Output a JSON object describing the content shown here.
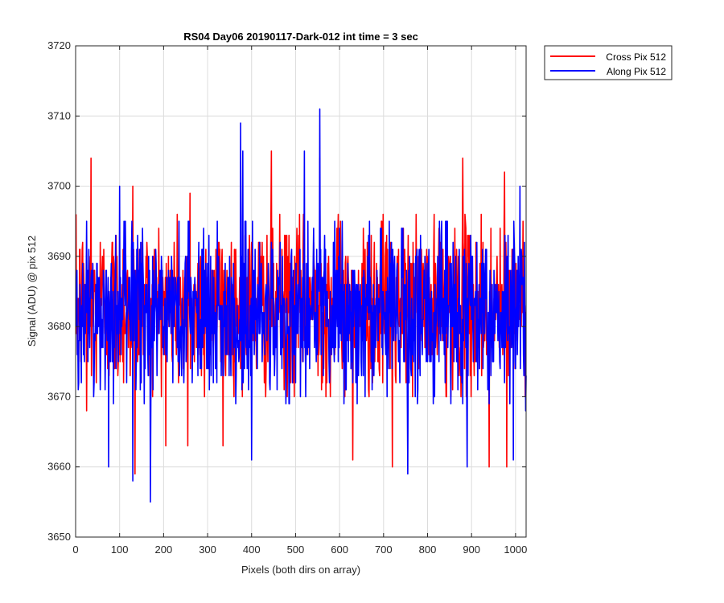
{
  "chart_data": {
    "type": "line",
    "title": "RS04 Day06 20190117-Dark-012 int time = 3 sec",
    "xlabel": "Pixels (both dirs on array)",
    "ylabel": "Signal (ADU) @ pix 512",
    "xlim": [
      0,
      1024
    ],
    "ylim": [
      3650,
      3720
    ],
    "xticks": [
      0,
      100,
      200,
      300,
      400,
      500,
      600,
      700,
      800,
      900,
      1000
    ],
    "yticks": [
      3650,
      3660,
      3670,
      3680,
      3690,
      3700,
      3710,
      3720
    ],
    "grid": true,
    "legend_position": "outside top-right",
    "series": [
      {
        "name": "Cross Pix 512",
        "color": "#ff0000",
        "x_start": 1,
        "x_step": 1,
        "mean": 3683,
        "noise_std": 6,
        "count": 1024,
        "notable_points": [
          {
            "x": 35,
            "y": 3704
          },
          {
            "x": 25,
            "y": 3699
          },
          {
            "x": 130,
            "y": 3700
          },
          {
            "x": 260,
            "y": 3699
          },
          {
            "x": 445,
            "y": 3705
          },
          {
            "x": 555,
            "y": 3704
          },
          {
            "x": 880,
            "y": 3704
          },
          {
            "x": 975,
            "y": 3702
          },
          {
            "x": 135,
            "y": 3659
          },
          {
            "x": 720,
            "y": 3660
          },
          {
            "x": 940,
            "y": 3660
          },
          {
            "x": 980,
            "y": 3660
          },
          {
            "x": 630,
            "y": 3661
          },
          {
            "x": 205,
            "y": 3663
          },
          {
            "x": 335,
            "y": 3663
          },
          {
            "x": 255,
            "y": 3663
          },
          {
            "x": 25,
            "y": 3668
          }
        ]
      },
      {
        "name": "Along Pix 512",
        "color": "#0000ff",
        "x_start": 1,
        "x_step": 1,
        "mean": 3682,
        "noise_std": 6,
        "count": 1024,
        "notable_points": [
          {
            "x": 555,
            "y": 3711
          },
          {
            "x": 375,
            "y": 3709
          },
          {
            "x": 380,
            "y": 3705
          },
          {
            "x": 520,
            "y": 3705
          },
          {
            "x": 1010,
            "y": 3700
          },
          {
            "x": 100,
            "y": 3700
          },
          {
            "x": 170,
            "y": 3655
          },
          {
            "x": 130,
            "y": 3658
          },
          {
            "x": 75,
            "y": 3660
          },
          {
            "x": 755,
            "y": 3659
          },
          {
            "x": 995,
            "y": 3661
          },
          {
            "x": 400,
            "y": 3661
          },
          {
            "x": 890,
            "y": 3660
          },
          {
            "x": 1023,
            "y": 3668
          }
        ]
      }
    ]
  }
}
